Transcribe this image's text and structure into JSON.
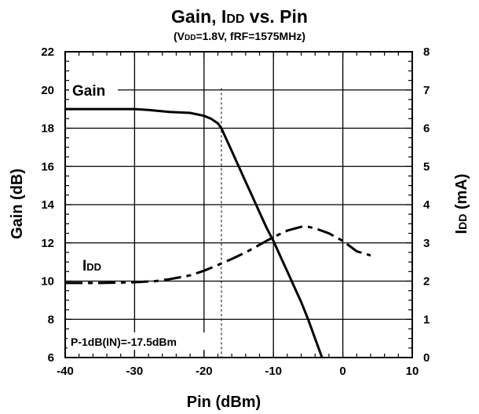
{
  "chart_data": {
    "type": "line",
    "title": "Gain, IDD vs. Pin",
    "subtitle": "(VDD=1.8V, fRF=1575MHz)",
    "xlabel": "Pin (dBm)",
    "ylabel": "Gain (dB)",
    "y2label": "IDD (mA)",
    "xlim": [
      -40,
      10
    ],
    "ylim": [
      6,
      22
    ],
    "y2lim": [
      0,
      8
    ],
    "x_ticks": [
      "-40",
      "-30",
      "-20",
      "-10",
      "0",
      "10"
    ],
    "y_ticks": [
      "6",
      "8",
      "10",
      "12",
      "14",
      "16",
      "18",
      "20",
      "22"
    ],
    "y2_ticks": [
      "0",
      "1",
      "2",
      "3",
      "4",
      "5",
      "6",
      "7",
      "8"
    ],
    "grid": true,
    "series": [
      {
        "name": "Gain",
        "axis": "left",
        "style": "solid",
        "points": [
          [
            -40,
            19.0
          ],
          [
            -35,
            19.0
          ],
          [
            -30,
            19.0
          ],
          [
            -28,
            18.95
          ],
          [
            -25,
            18.85
          ],
          [
            -22,
            18.8
          ],
          [
            -20,
            18.65
          ],
          [
            -19,
            18.5
          ],
          [
            -18,
            18.25
          ],
          [
            -17.5,
            18.0
          ],
          [
            -17,
            17.6
          ],
          [
            -16,
            16.8
          ],
          [
            -15,
            16.0
          ],
          [
            -14,
            15.2
          ],
          [
            -13,
            14.4
          ],
          [
            -12,
            13.6
          ],
          [
            -11,
            12.8
          ],
          [
            -10,
            12.1
          ],
          [
            -9,
            11.3
          ],
          [
            -8,
            10.5
          ],
          [
            -7,
            9.7
          ],
          [
            -6,
            8.9
          ],
          [
            -5,
            8.0
          ],
          [
            -4,
            7.0
          ],
          [
            -3,
            6.0
          ]
        ]
      },
      {
        "name": "IDD",
        "axis": "right",
        "style": "dash-dot",
        "points": [
          [
            -40,
            1.95
          ],
          [
            -35,
            1.95
          ],
          [
            -30,
            1.97
          ],
          [
            -27,
            2.0
          ],
          [
            -25,
            2.05
          ],
          [
            -22,
            2.15
          ],
          [
            -20,
            2.27
          ],
          [
            -18,
            2.42
          ],
          [
            -16,
            2.58
          ],
          [
            -14,
            2.75
          ],
          [
            -12,
            2.95
          ],
          [
            -10,
            3.15
          ],
          [
            -8,
            3.32
          ],
          [
            -6,
            3.42
          ],
          [
            -5,
            3.42
          ],
          [
            -4,
            3.38
          ],
          [
            -2,
            3.25
          ],
          [
            0,
            3.05
          ],
          [
            2,
            2.78
          ],
          [
            4,
            2.67
          ]
        ]
      }
    ],
    "reference": {
      "gain_db": 18,
      "pin_dbm": -17.5,
      "x_end_dbm": -12
    },
    "labels": {
      "gain": "Gain",
      "idd": "IDD",
      "annotation": "P-1dB(IN)=-17.5dBm"
    }
  }
}
